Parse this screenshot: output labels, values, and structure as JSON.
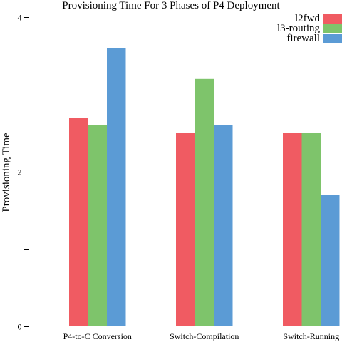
{
  "chart_data": {
    "type": "bar",
    "title": "Provisioning Time For 3 Phases of P4 Deployment",
    "xlabel": "",
    "ylabel": "Provisioning Time",
    "categories": [
      "P4-to-C Conversion",
      "Switch-Compilation",
      "Switch-Running"
    ],
    "series": [
      {
        "name": "l2fwd",
        "color": "#f05b62",
        "values": [
          2.7,
          2.5,
          2.5
        ]
      },
      {
        "name": "l3-routing",
        "color": "#7ec46b",
        "values": [
          2.6,
          3.2,
          2.5
        ]
      },
      {
        "name": "firewall",
        "color": "#5b9bd5",
        "values": [
          3.6,
          2.6,
          1.7
        ]
      }
    ],
    "ylim": [
      0,
      4
    ],
    "yticks": [
      0,
      1,
      2,
      3,
      4
    ],
    "ytick_labels": [
      "0",
      "",
      "2",
      "",
      "4"
    ],
    "grid": false,
    "legend_position": "top-right"
  }
}
